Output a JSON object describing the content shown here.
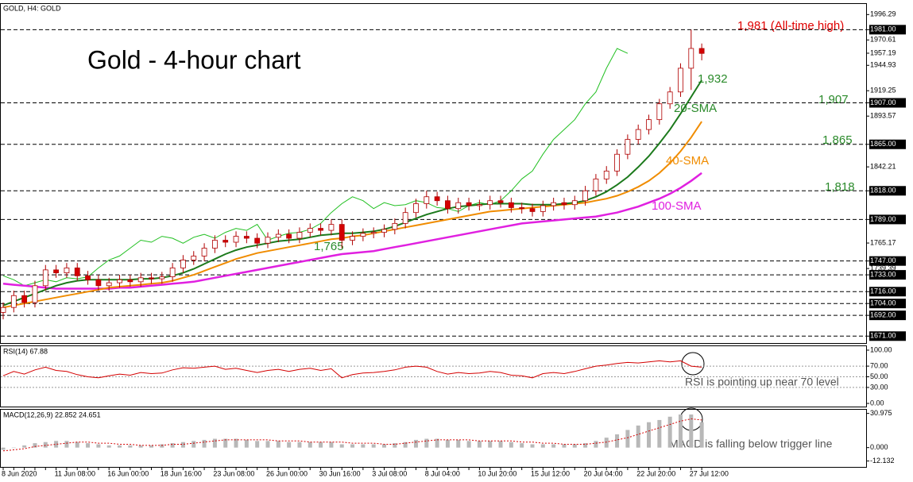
{
  "chart_data": [
    {
      "type": "candlestick",
      "subtitle": "GOLD, H4:  GOLD",
      "title": "Gold - 4-hour chart",
      "categories": [
        "8 Jun 2020",
        null,
        null,
        null,
        null,
        "11 Jun 08:00",
        null,
        null,
        null,
        null,
        "16 Jun 00:00",
        null,
        null,
        null,
        null,
        "18 Jun 16:00",
        null,
        null,
        null,
        null,
        "23 Jun 08:00",
        null,
        null,
        null,
        null,
        "26 Jun 00:00",
        null,
        null,
        null,
        null,
        "30 Jun 16:00",
        null,
        null,
        null,
        null,
        "3 Jul 08:00",
        null,
        null,
        null,
        null,
        "8 Jul 04:00",
        null,
        null,
        null,
        null,
        "10 Jul 20:00",
        null,
        null,
        null,
        null,
        "15 Jul 12:00",
        null,
        null,
        null,
        null,
        "20 Jul 04:00",
        null,
        null,
        null,
        null,
        "22 Jul 20:00",
        null,
        null,
        null,
        null,
        "27 Jul 12:00",
        null
      ],
      "open": [
        1695,
        1700,
        1712,
        1705,
        1722,
        1738,
        1735,
        1740,
        1732,
        1728,
        1722,
        1725,
        1728,
        1726,
        1730,
        1729,
        1731,
        1740,
        1748,
        1752,
        1760,
        1768,
        1766,
        1772,
        1770,
        1765,
        1771,
        1774,
        1770,
        1776,
        1780,
        1778,
        1784,
        1768,
        1772,
        1775,
        1776,
        1779,
        1785,
        1796,
        1805,
        1812,
        1808,
        1800,
        1806,
        1803,
        1804,
        1808,
        1806,
        1801,
        1800,
        1797,
        1803,
        1806,
        1804,
        1808,
        1818,
        1830,
        1838,
        1855,
        1870,
        1880,
        1890,
        1906,
        1918,
        1942,
        1962
      ],
      "high": [
        1705,
        1717,
        1717,
        1727,
        1743,
        1743,
        1745,
        1745,
        1737,
        1733,
        1730,
        1733,
        1733,
        1735,
        1735,
        1736,
        1745,
        1753,
        1757,
        1765,
        1773,
        1773,
        1777,
        1777,
        1775,
        1776,
        1779,
        1779,
        1781,
        1785,
        1785,
        1789,
        1789,
        1777,
        1780,
        1781,
        1784,
        1790,
        1801,
        1810,
        1818,
        1817,
        1813,
        1811,
        1811,
        1809,
        1813,
        1813,
        1811,
        1806,
        1805,
        1808,
        1811,
        1811,
        1813,
        1823,
        1835,
        1843,
        1860,
        1875,
        1885,
        1895,
        1911,
        1923,
        1947,
        1981,
        1967
      ],
      "low": [
        1688,
        1695,
        1700,
        1700,
        1717,
        1730,
        1730,
        1727,
        1723,
        1717,
        1717,
        1720,
        1721,
        1721,
        1724,
        1724,
        1726,
        1735,
        1743,
        1747,
        1755,
        1761,
        1761,
        1765,
        1760,
        1760,
        1766,
        1765,
        1765,
        1771,
        1773,
        1773,
        1760,
        1763,
        1767,
        1770,
        1771,
        1774,
        1780,
        1791,
        1800,
        1803,
        1795,
        1795,
        1798,
        1798,
        1799,
        1801,
        1796,
        1795,
        1792,
        1792,
        1798,
        1799,
        1799,
        1803,
        1813,
        1825,
        1833,
        1850,
        1865,
        1875,
        1885,
        1901,
        1913,
        1920,
        1950
      ],
      "close": [
        1700,
        1712,
        1705,
        1722,
        1738,
        1735,
        1740,
        1732,
        1728,
        1722,
        1725,
        1728,
        1726,
        1730,
        1729,
        1731,
        1740,
        1748,
        1752,
        1760,
        1768,
        1766,
        1772,
        1770,
        1765,
        1771,
        1774,
        1770,
        1776,
        1780,
        1778,
        1784,
        1768,
        1772,
        1775,
        1776,
        1779,
        1785,
        1796,
        1805,
        1812,
        1808,
        1800,
        1806,
        1803,
        1804,
        1808,
        1806,
        1801,
        1800,
        1797,
        1803,
        1806,
        1804,
        1808,
        1818,
        1830,
        1838,
        1855,
        1870,
        1880,
        1890,
        1906,
        1918,
        1942,
        1962,
        1957
      ],
      "up_color": "#ffffff",
      "down_color": "#d40000",
      "candle_stroke": "#b00000",
      "lines": [
        {
          "color": "#22c022",
          "width": 1,
          "values": [
            1732,
            1728,
            1722,
            1725,
            1728,
            1726,
            1730,
            1729,
            1731,
            1740,
            1748,
            1752,
            1760,
            1768,
            1766,
            1772,
            1770,
            1765,
            1771,
            1774,
            1770,
            1776,
            1780,
            1778,
            1784,
            1768,
            1772,
            1775,
            1776,
            1779,
            1785,
            1796,
            1805,
            1812,
            1808,
            1800,
            1806,
            1803,
            1804,
            1808,
            1806,
            1801,
            1800,
            1797,
            1803,
            1806,
            1804,
            1808,
            1818,
            1830,
            1838,
            1855,
            1870,
            1880,
            1890,
            1906,
            1918,
            1942,
            1962,
            1957,
            null,
            null,
            null,
            null,
            null,
            null,
            null
          ]
        },
        {
          "color": "#e020e0",
          "width": 2.5,
          "values": [
            1724,
            1723,
            1722,
            1721,
            1720,
            1719,
            1719,
            1719,
            1719,
            1719,
            1719,
            1720,
            1720,
            1721,
            1722,
            1723,
            1724,
            1725,
            1726,
            1728,
            1730,
            1732,
            1734,
            1736,
            1738,
            1740,
            1742,
            1744,
            1746,
            1748,
            1750,
            1752,
            1754,
            1755,
            1756,
            1757,
            1759,
            1761,
            1763,
            1765,
            1767,
            1769,
            1771,
            1773,
            1775,
            1777,
            1779,
            1781,
            1783,
            1785,
            1786,
            1787,
            1788,
            1789,
            1790,
            1791,
            1792,
            1794,
            1796,
            1799,
            1802,
            1806,
            1810,
            1815,
            1821,
            1828,
            1836
          ]
        },
        {
          "color": "#f08c00",
          "width": 2,
          "values": [
            1700,
            1702,
            1704,
            1706,
            1708,
            1710,
            1712,
            1714,
            1716,
            1718,
            1720,
            1721,
            1722,
            1723,
            1724,
            1725,
            1727,
            1730,
            1733,
            1737,
            1741,
            1745,
            1749,
            1752,
            1755,
            1757,
            1759,
            1761,
            1763,
            1765,
            1767,
            1769,
            1770,
            1772,
            1773,
            1775,
            1777,
            1779,
            1781,
            1783,
            1785,
            1787,
            1789,
            1791,
            1793,
            1795,
            1797,
            1798,
            1799,
            1800,
            1801,
            1802,
            1803,
            1804,
            1805,
            1806,
            1808,
            1810,
            1813,
            1817,
            1822,
            1828,
            1836,
            1846,
            1858,
            1872,
            1888
          ]
        },
        {
          "color": "#1c7a1c",
          "width": 2,
          "values": [
            1702,
            1706,
            1710,
            1714,
            1718,
            1722,
            1725,
            1727,
            1728,
            1728,
            1728,
            1728,
            1728,
            1729,
            1729,
            1730,
            1732,
            1735,
            1739,
            1744,
            1749,
            1754,
            1758,
            1761,
            1763,
            1765,
            1767,
            1768,
            1769,
            1771,
            1773,
            1774,
            1775,
            1775,
            1776,
            1777,
            1779,
            1782,
            1786,
            1790,
            1794,
            1797,
            1800,
            1802,
            1803,
            1804,
            1805,
            1805,
            1805,
            1805,
            1804,
            1804,
            1804,
            1805,
            1806,
            1808,
            1812,
            1817,
            1824,
            1832,
            1842,
            1853,
            1866,
            1880,
            1896,
            1913,
            1930
          ]
        }
      ],
      "ylim": [
        1664,
        2007
      ],
      "yticks": [
        1996.29,
        {
          "value": 1981,
          "label": "1981.00"
        },
        1970.61,
        1957.19,
        1944.93,
        1919.25,
        {
          "value": 1907,
          "label": "1907.00"
        },
        1893.57,
        {
          "value": 1865,
          "label": "1865.00"
        },
        1842.21,
        {
          "value": 1818,
          "label": "1818.00"
        },
        {
          "value": 1789,
          "label": "1789.00"
        },
        1765.17,
        {
          "value": 1747,
          "label": "1747.00"
        },
        1739.39,
        {
          "value": 1733,
          "label": "1733.00"
        },
        {
          "value": 1716,
          "label": "1716.00"
        },
        {
          "value": 1704,
          "label": "1704.00"
        },
        {
          "value": 1692,
          "label": "1692.00"
        },
        {
          "value": 1671,
          "label": "1671.00"
        }
      ],
      "levels": [
        1981,
        1907,
        1865,
        1818,
        1789,
        1747,
        1733,
        1716,
        1704,
        1692,
        1671
      ],
      "annotations": [
        "1,981 (All-time high)",
        "1,932",
        "20-SMA",
        "1,907",
        "1,865",
        "40-SMA",
        "1,818",
        "100-SMA",
        "1,765"
      ]
    },
    {
      "type": "line",
      "title": "RSI(14) 67.88",
      "color": "#d40000",
      "values": [
        52,
        60,
        55,
        63,
        68,
        62,
        60,
        54,
        50,
        48,
        52,
        55,
        53,
        58,
        56,
        57,
        63,
        67,
        66,
        68,
        70,
        64,
        66,
        62,
        58,
        62,
        64,
        60,
        64,
        66,
        62,
        65,
        48,
        54,
        57,
        58,
        60,
        63,
        68,
        70,
        68,
        60,
        55,
        58,
        56,
        57,
        60,
        58,
        53,
        52,
        48,
        56,
        58,
        56,
        60,
        65,
        70,
        72,
        75,
        77,
        76,
        78,
        80,
        78,
        80,
        70,
        68
      ],
      "ylim": [
        -5.9,
        107.4
      ],
      "yticks": [
        {
          "value": 100,
          "label": "100.00"
        },
        {
          "value": 70,
          "label": "70.00"
        },
        {
          "value": 50,
          "label": "50.00"
        },
        {
          "value": 30,
          "label": "30.00"
        },
        {
          "value": 0,
          "label": "0.00"
        }
      ],
      "annotation": "RSI is pointing up near 70 level"
    },
    {
      "type": "bar",
      "title": "MACD(12,26,9) 22.852 24.651",
      "color": "#b8b8b8",
      "signal_color": "#d40000",
      "values": [
        -2,
        0,
        2,
        4,
        5,
        6,
        6,
        5,
        4,
        3,
        2,
        2,
        2,
        2,
        2,
        3,
        4,
        5,
        6,
        7,
        8,
        8,
        8,
        7,
        6,
        6,
        6,
        5,
        5,
        5,
        5,
        5,
        3,
        3,
        3,
        3,
        3,
        4,
        5,
        7,
        8,
        8,
        7,
        7,
        6,
        6,
        6,
        6,
        5,
        4,
        3,
        3,
        3,
        3,
        3,
        4,
        6,
        9,
        12,
        16,
        20,
        23,
        25,
        28,
        30,
        30,
        23
      ],
      "signal": [
        -3,
        -2,
        -1,
        1,
        2,
        3,
        4,
        5,
        5,
        4,
        4,
        3,
        3,
        2,
        2,
        2,
        3,
        3,
        4,
        5,
        6,
        7,
        7,
        7,
        7,
        7,
        6,
        6,
        6,
        5,
        5,
        5,
        5,
        4,
        4,
        4,
        3,
        3,
        4,
        5,
        6,
        7,
        7,
        7,
        7,
        6,
        6,
        6,
        6,
        5,
        5,
        4,
        4,
        3,
        3,
        3,
        4,
        5,
        7,
        9,
        12,
        15,
        18,
        21,
        24,
        26,
        25
      ],
      "ylim": [
        -17.5,
        34.3
      ],
      "yticks": [
        30.975,
        {
          "value": 0,
          "label": "0.000"
        },
        -12.132
      ],
      "annotation": "MACD is falling below trigger line"
    }
  ]
}
